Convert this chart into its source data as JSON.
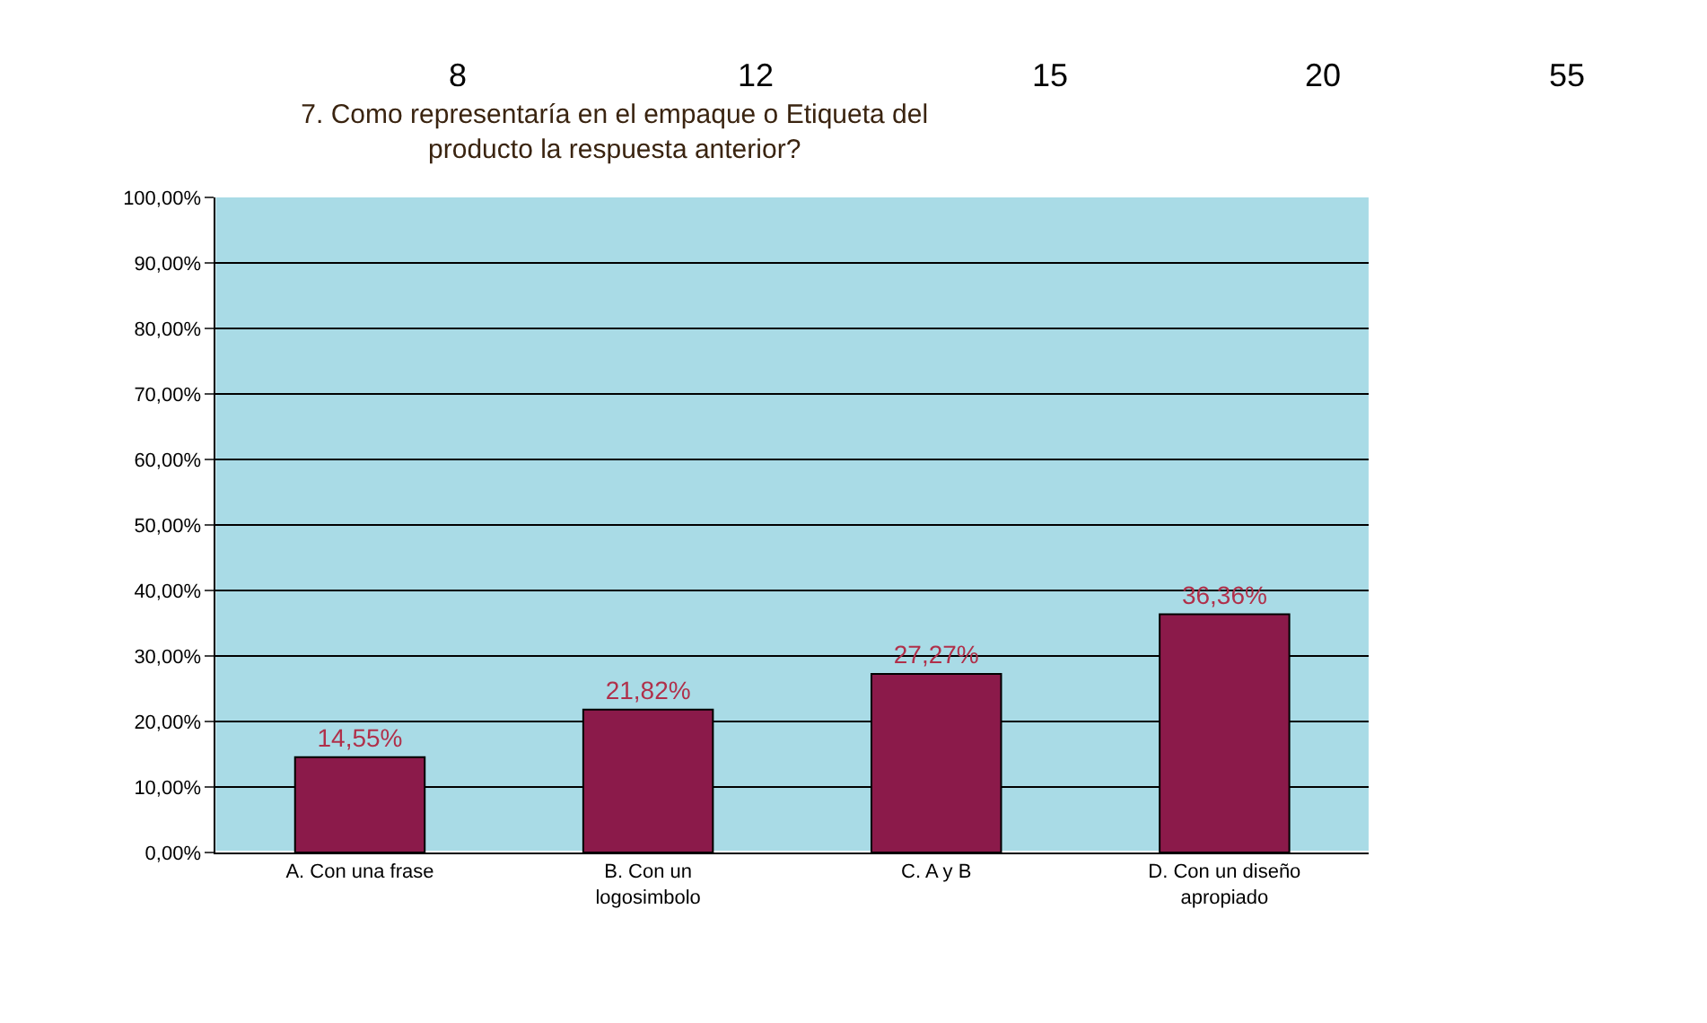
{
  "chart_data": {
    "type": "bar",
    "title": "7. Como representaría en el empaque o Etiqueta del producto la respuesta anterior?",
    "categories": [
      "A. Con una frase",
      "B. Con un logosimbolo",
      "C. A y B",
      "D. Con un diseño apropiado"
    ],
    "values": [
      14.55,
      21.82,
      27.27,
      36.36
    ],
    "color": "#8b1a4a",
    "value_labels": [
      "14,55%",
      "21,82%",
      "27,27%",
      "36,36%"
    ],
    "ylim": [
      0,
      100
    ],
    "yticks": [
      {
        "value": 0,
        "label": "0,00%"
      },
      {
        "value": 10,
        "label": "10,00%"
      },
      {
        "value": 20,
        "label": "20,00%"
      },
      {
        "value": 30,
        "label": "30,00%"
      },
      {
        "value": 40,
        "label": "40,00%"
      },
      {
        "value": 50,
        "label": "50,00%"
      },
      {
        "value": 60,
        "label": "60,00%"
      },
      {
        "value": 70,
        "label": "70,00%"
      },
      {
        "value": 80,
        "label": "80,00%"
      },
      {
        "value": 90,
        "label": "90,00%"
      },
      {
        "value": 100,
        "label": "100,00%"
      }
    ],
    "grid": "y",
    "annotations": [
      "8",
      "12",
      "15",
      "20",
      "55"
    ]
  }
}
